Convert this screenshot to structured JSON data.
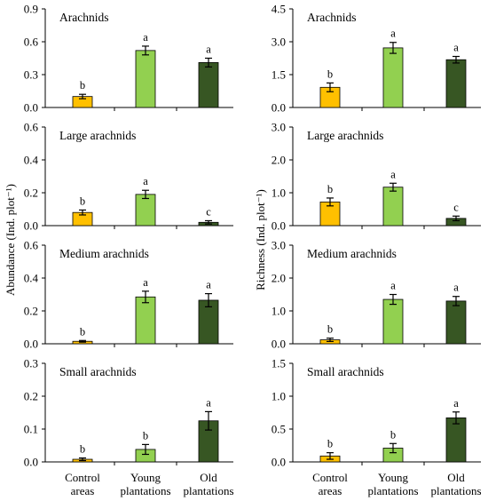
{
  "y_axis_titles": {
    "left": "Abundance (Ind. plot⁻¹)",
    "right": "Richness (Ind. plot⁻¹)"
  },
  "categories": [
    [
      "Control",
      "areas"
    ],
    [
      "Young",
      "plantations"
    ],
    [
      "Old",
      "plantations"
    ]
  ],
  "colors": {
    "control": "#ffc000",
    "young": "#92d050",
    "old": "#375623"
  },
  "chart_data": [
    {
      "type": "bar",
      "title": "Arachnids",
      "column": "abundance",
      "ylim": [
        0,
        0.9
      ],
      "ticks": [
        "0.0",
        "0.3",
        "0.6",
        "0.9"
      ],
      "values": [
        0.1,
        0.52,
        0.41
      ],
      "errors": [
        0.02,
        0.04,
        0.04
      ],
      "letters": [
        "b",
        "a",
        "a"
      ]
    },
    {
      "type": "bar",
      "title": "Large arachnids",
      "column": "abundance",
      "ylim": [
        0,
        0.6
      ],
      "ticks": [
        "0.0",
        "0.2",
        "0.4",
        "0.6"
      ],
      "values": [
        0.08,
        0.19,
        0.02
      ],
      "errors": [
        0.015,
        0.025,
        0.01
      ],
      "letters": [
        "b",
        "a",
        "c"
      ]
    },
    {
      "type": "bar",
      "title": "Medium arachnids",
      "column": "abundance",
      "ylim": [
        0,
        0.6
      ],
      "ticks": [
        "0.0",
        "0.2",
        "0.4",
        "0.6"
      ],
      "values": [
        0.015,
        0.285,
        0.265
      ],
      "errors": [
        0.005,
        0.035,
        0.04
      ],
      "letters": [
        "b",
        "a",
        "a"
      ]
    },
    {
      "type": "bar",
      "title": "Small arachnids",
      "column": "abundance",
      "ylim": [
        0,
        0.3
      ],
      "ticks": [
        "0.0",
        "0.1",
        "0.2",
        "0.3"
      ],
      "values": [
        0.008,
        0.038,
        0.125
      ],
      "errors": [
        0.004,
        0.015,
        0.028
      ],
      "letters": [
        "b",
        "b",
        "a"
      ]
    },
    {
      "type": "bar",
      "title": "Arachnids",
      "column": "richness",
      "ylim": [
        0,
        4.5
      ],
      "ticks": [
        "0.0",
        "1.5",
        "3.0",
        "4.5"
      ],
      "values": [
        0.92,
        2.72,
        2.18
      ],
      "errors": [
        0.2,
        0.25,
        0.15
      ],
      "letters": [
        "b",
        "a",
        "a"
      ]
    },
    {
      "type": "bar",
      "title": "Large arachnids",
      "column": "richness",
      "ylim": [
        0,
        3.0
      ],
      "ticks": [
        "0.0",
        "1.0",
        "2.0",
        "3.0"
      ],
      "values": [
        0.72,
        1.17,
        0.22
      ],
      "errors": [
        0.12,
        0.12,
        0.07
      ],
      "letters": [
        "b",
        "a",
        "c"
      ]
    },
    {
      "type": "bar",
      "title": "Medium arachnids",
      "column": "richness",
      "ylim": [
        0,
        3.0
      ],
      "ticks": [
        "0.0",
        "1.0",
        "2.0",
        "3.0"
      ],
      "values": [
        0.12,
        1.35,
        1.3
      ],
      "errors": [
        0.05,
        0.15,
        0.14
      ],
      "letters": [
        "b",
        "a",
        "a"
      ]
    },
    {
      "type": "bar",
      "title": "Small arachnids",
      "column": "richness",
      "ylim": [
        0,
        1.5
      ],
      "ticks": [
        "0.0",
        "0.5",
        "1.0",
        "1.5"
      ],
      "values": [
        0.09,
        0.21,
        0.67
      ],
      "errors": [
        0.05,
        0.07,
        0.09
      ],
      "letters": [
        "b",
        "b",
        "a"
      ]
    }
  ]
}
